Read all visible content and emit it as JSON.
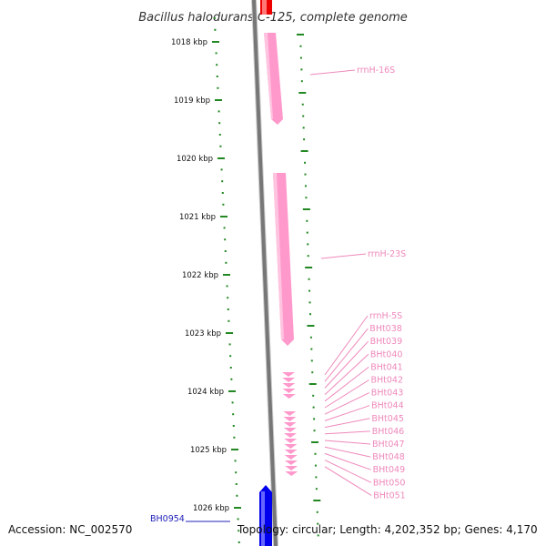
{
  "title": "Bacillus halodurans C-125, complete genome",
  "ruler": {
    "labels": [
      "1018 kbp",
      "1019 kbp",
      "1020 kbp",
      "1021 kbp",
      "1022 kbp",
      "1023 kbp",
      "1024 kbp",
      "1025 kbp",
      "1026 kbp"
    ],
    "tick_color": "#228822"
  },
  "backbone_color": "#777777",
  "features": [
    {
      "label": "rrnH-16S",
      "color": "#ff99cc",
      "kind": "rRNA"
    },
    {
      "label": "rrnH-23S",
      "color": "#ff99cc",
      "kind": "rRNA"
    },
    {
      "label": "rrnH-5S",
      "color": "#ff99cc",
      "kind": "rRNA"
    },
    {
      "label": "BHt038",
      "color": "#ff99cc",
      "kind": "tRNA"
    },
    {
      "label": "BHt039",
      "color": "#ff99cc",
      "kind": "tRNA"
    },
    {
      "label": "BHt040",
      "color": "#ff99cc",
      "kind": "tRNA"
    },
    {
      "label": "BHt041",
      "color": "#ff99cc",
      "kind": "tRNA"
    },
    {
      "label": "BHt042",
      "color": "#ff99cc",
      "kind": "tRNA"
    },
    {
      "label": "BHt043",
      "color": "#ff99cc",
      "kind": "tRNA"
    },
    {
      "label": "BHt044",
      "color": "#ff99cc",
      "kind": "tRNA"
    },
    {
      "label": "BHt045",
      "color": "#ff99cc",
      "kind": "tRNA"
    },
    {
      "label": "BHt046",
      "color": "#ff99cc",
      "kind": "tRNA"
    },
    {
      "label": "BHt047",
      "color": "#ff99cc",
      "kind": "tRNA"
    },
    {
      "label": "BHt048",
      "color": "#ff99cc",
      "kind": "tRNA"
    },
    {
      "label": "BHt049",
      "color": "#ff99cc",
      "kind": "tRNA"
    },
    {
      "label": "BHt050",
      "color": "#ff99cc",
      "kind": "tRNA"
    },
    {
      "label": "BHt051",
      "color": "#ff99cc",
      "kind": "tRNA"
    }
  ],
  "genes": [
    {
      "label": "BH0954",
      "color": "#0000ee"
    }
  ],
  "top_gene_color": "#ee0000",
  "footer": {
    "accession": "Accession: NC_002570",
    "summary": "Topology: circular; Length: 4,202,352 bp; Genes: 4,170"
  }
}
